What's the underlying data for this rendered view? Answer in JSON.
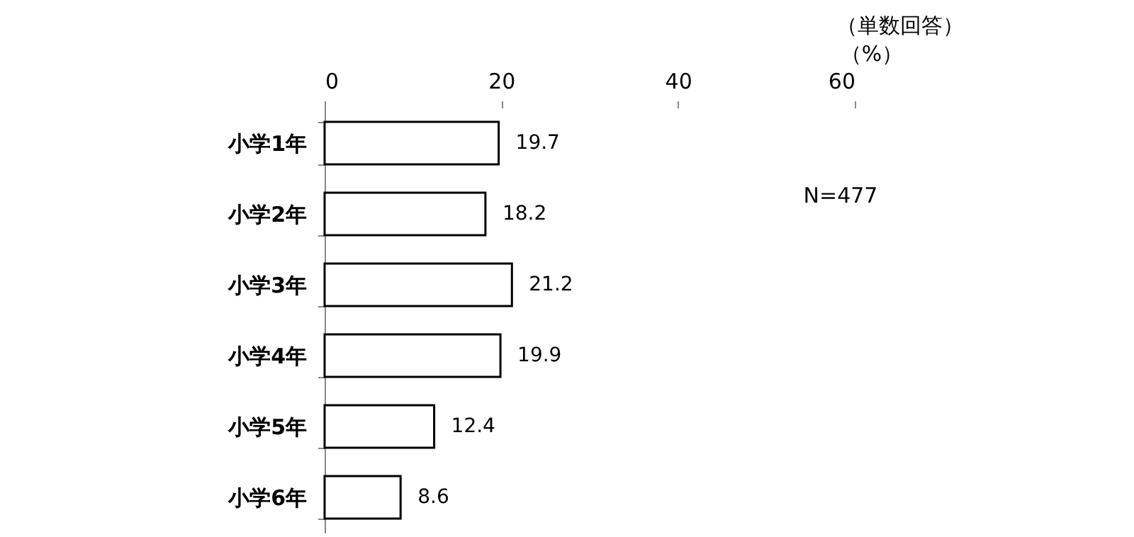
{
  "chart_data": {
    "type": "bar",
    "orientation": "horizontal",
    "subtitle": "（単数回答）",
    "xlabel": "（%）",
    "categories": [
      "小学1年",
      "小学2年",
      "小学3年",
      "小学4年",
      "小学5年",
      "小学6年"
    ],
    "values": [
      19.7,
      18.2,
      21.2,
      19.9,
      12.4,
      8.6
    ],
    "color": "#ffffff",
    "xlim": [
      0,
      60
    ],
    "xticks": [
      0,
      20,
      40,
      60
    ],
    "grid": false,
    "data_labels": true,
    "annotations": [
      "N=477"
    ]
  }
}
